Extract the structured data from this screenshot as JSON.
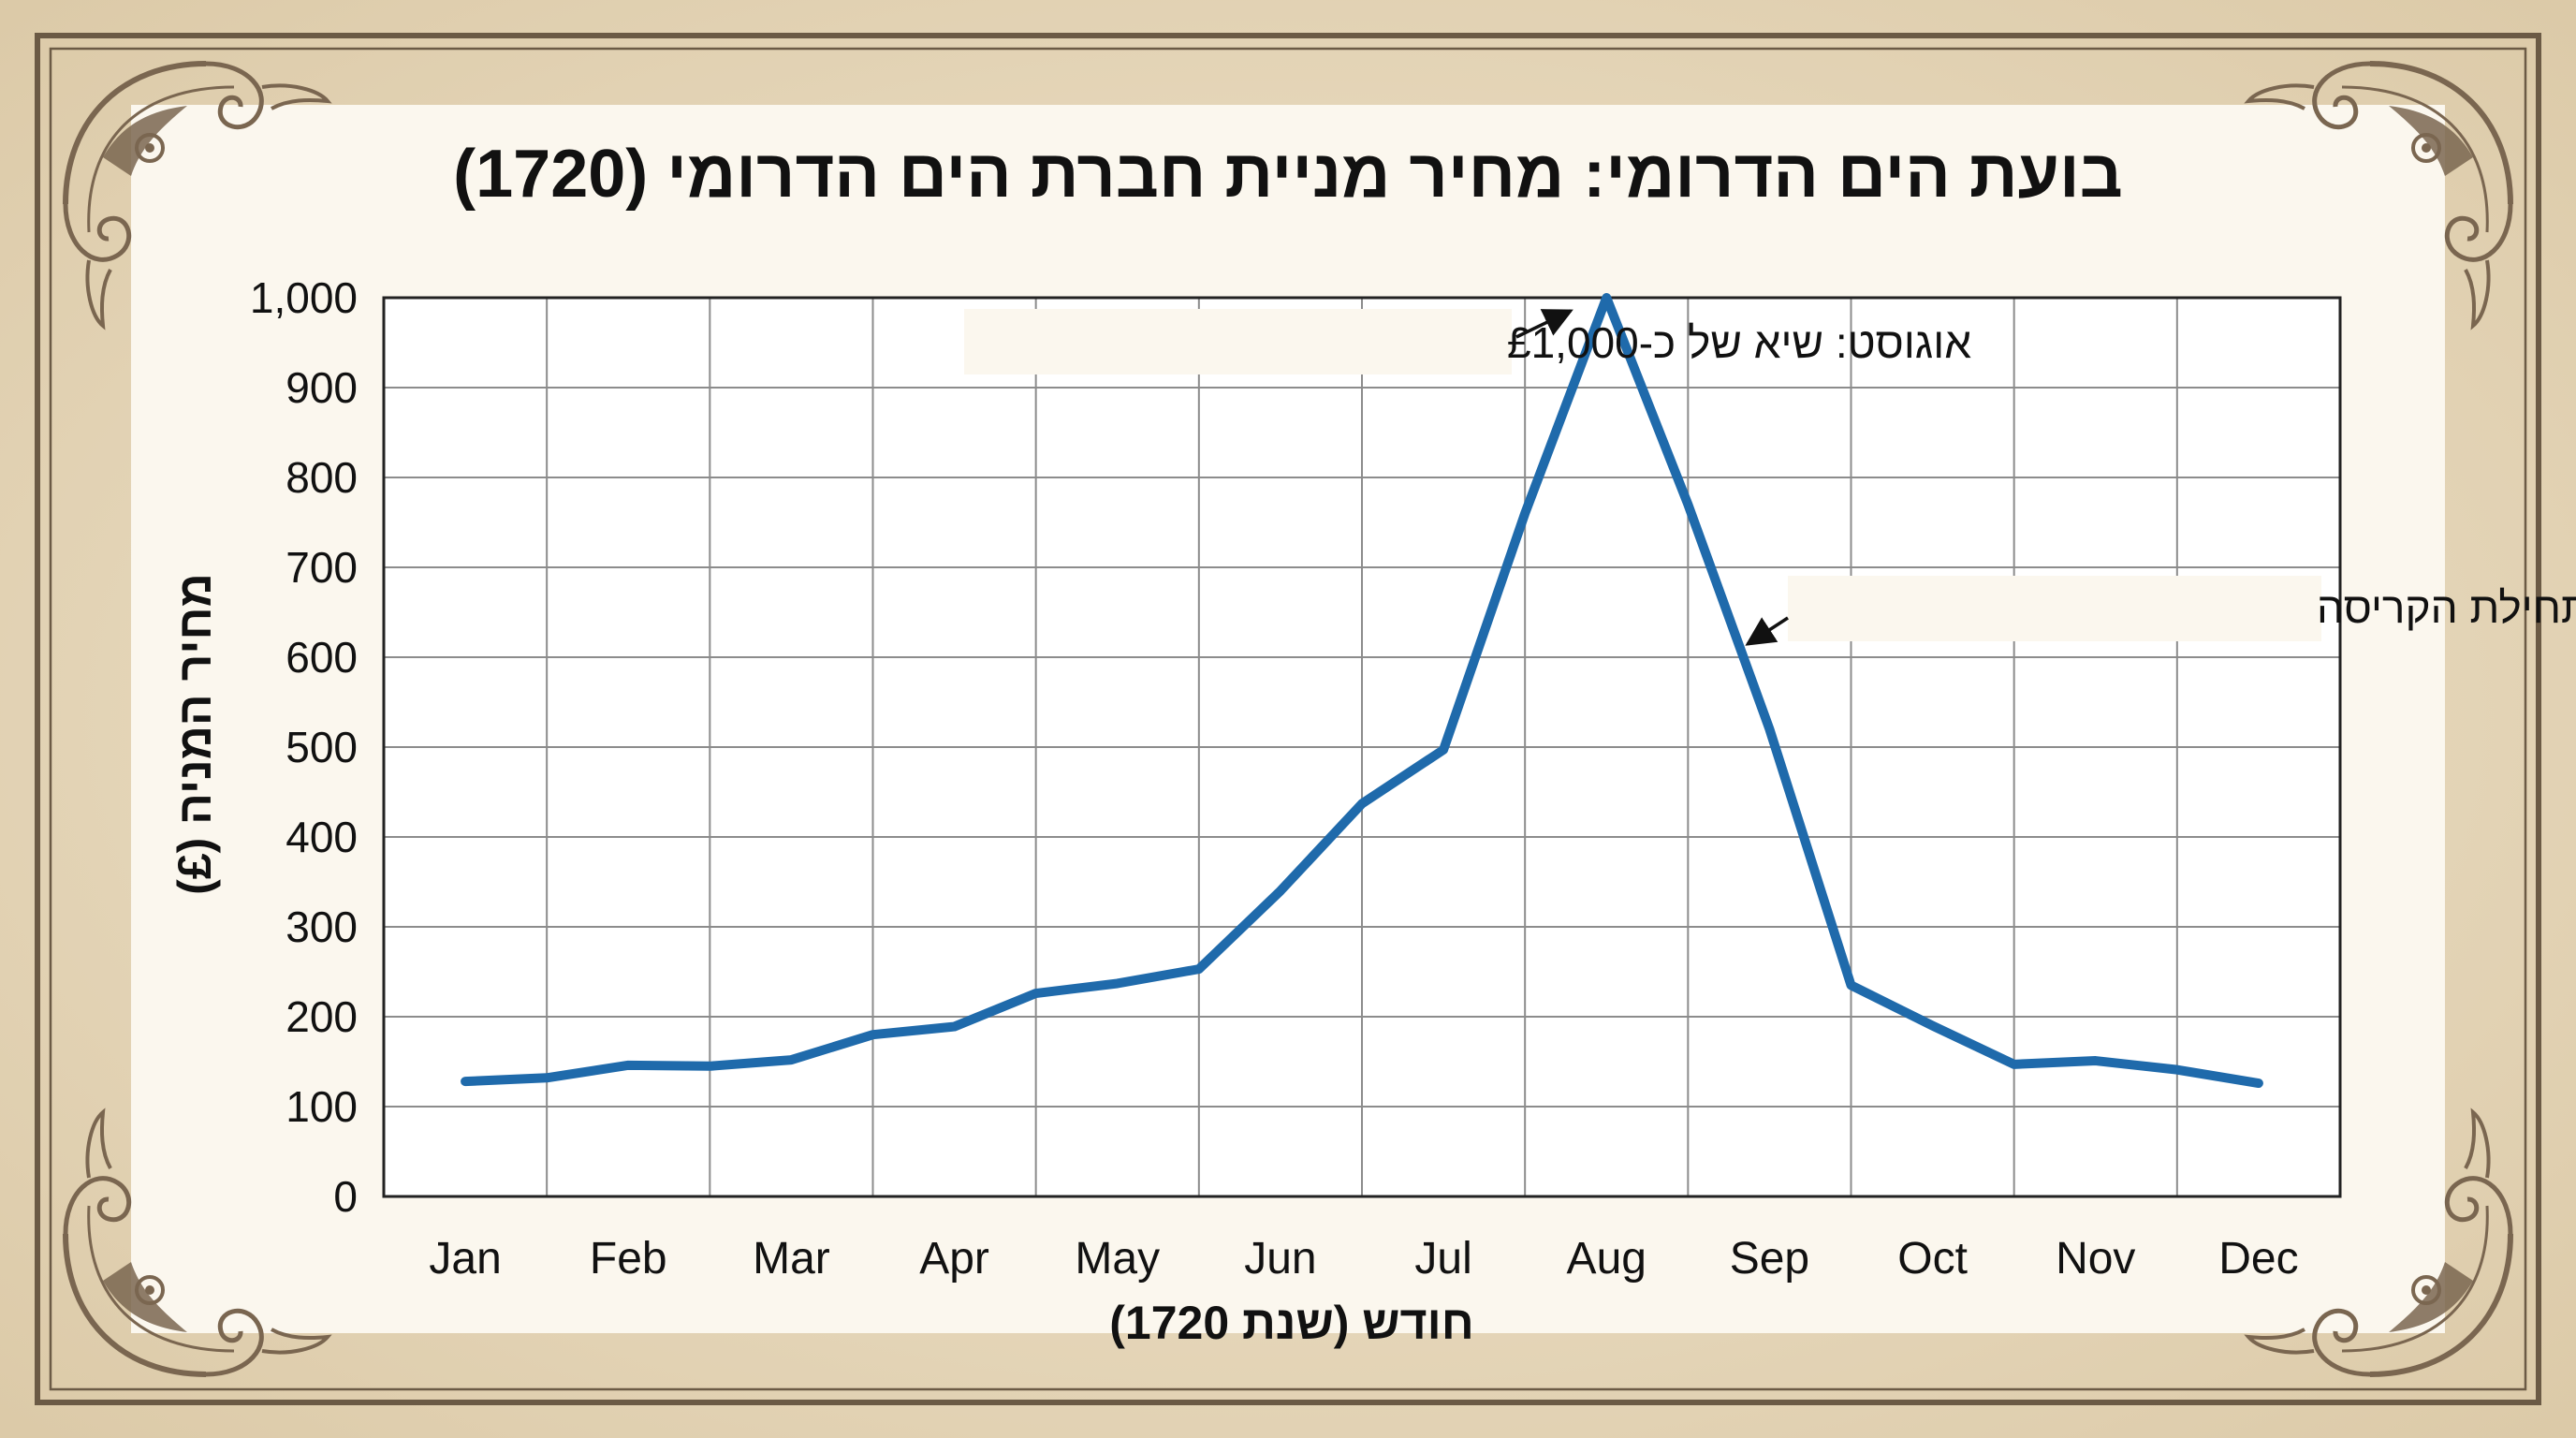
{
  "colors": {
    "background": "#e9dcc3",
    "panel": "#fbf7ee",
    "border": "#6b5a45",
    "ornament": "#7a6650",
    "grid": "#8c8c8c",
    "line": "#1f6aab",
    "text": "#111111"
  },
  "ornaments": [
    "corner-scroll-top-left",
    "corner-scroll-top-right",
    "corner-scroll-bottom-left",
    "corner-scroll-bottom-right"
  ],
  "chart_data": {
    "type": "line",
    "title": "בועת הים הדרומי: מחיר מניית חברת הים הדרומי (1720)",
    "xlabel": "חודש (שנת 1720)",
    "ylabel": "מחיר המניה (£)",
    "ylim": [
      0,
      1000
    ],
    "yticks": [
      0,
      100,
      200,
      300,
      400,
      500,
      600,
      700,
      800,
      900,
      1000
    ],
    "ytick_labels": [
      "0",
      "100",
      "200",
      "300",
      "400",
      "500",
      "600",
      "700",
      "800",
      "900",
      "1,000"
    ],
    "categories": [
      "Jan",
      "Feb",
      "Mar",
      "Apr",
      "May",
      "Jun",
      "Jul",
      "Aug",
      "Sep",
      "Oct",
      "Nov",
      "Dec"
    ],
    "grid": true,
    "legend": "none",
    "series": [
      {
        "x": [
          0,
          0.5,
          1,
          1.5,
          2,
          2.5,
          3,
          3.5,
          4,
          4.5,
          5,
          5.5,
          6,
          6.5,
          7,
          7.5,
          8,
          8.5,
          9,
          9.5,
          10,
          10.5,
          11
        ],
        "y": [
          128,
          132,
          146,
          145,
          152,
          180,
          189,
          226,
          237,
          253,
          340,
          437,
          497,
          760,
          1000,
          770,
          520,
          235,
          190,
          147,
          151,
          141,
          126
        ],
        "color": "#1f6aab"
      }
    ],
    "annotations": [
      {
        "text": "אוגוסט: שיא של כ-£1,000",
        "x": 7,
        "y": 1000
      },
      {
        "text": "ספטמבר: תחילת הקריסה",
        "x": 8,
        "y": 615
      }
    ]
  }
}
